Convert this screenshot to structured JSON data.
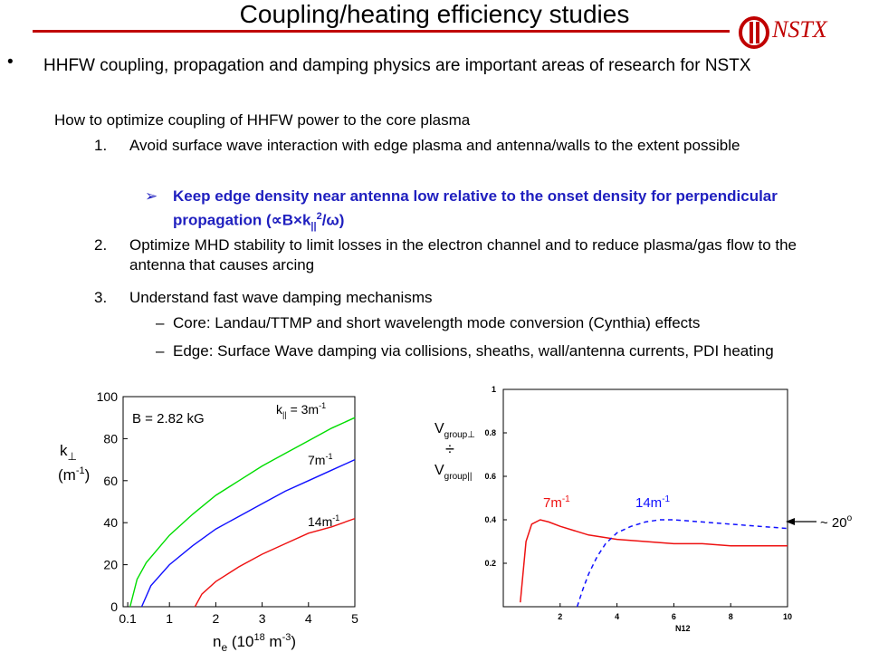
{
  "slide": {
    "title": "Coupling/heating efficiency studies",
    "logo_text": "NSTX",
    "bullet": "HHFW coupling, propagation and damping physics are important areas of research for NSTX",
    "subheading": "How to optimize coupling of HHFW power to the core plasma",
    "items": [
      {
        "num": "1.",
        "text": "Avoid surface wave interaction with edge plasma and antenna/walls to the extent possible"
      },
      {
        "num": "2.",
        "text": "Optimize MHD stability to limit losses in the electron channel and to reduce plasma/gas flow to the antenna that causes arcing"
      },
      {
        "num": "3.",
        "text": "Understand fast wave damping mechanisms"
      }
    ],
    "highlight": "Keep edge density near antenna low relative to the onset density for perpendicular propagation (∝B×k",
    "highlight_sub": "||",
    "highlight_sup": "2",
    "highlight_end": "/ω)",
    "sub_items": [
      "Core: Landau/TTMP and short wavelength mode conversion (Cynthia) effects",
      "Edge: Surface Wave damping via collisions, sheaths, wall/antenna currents, PDI heating"
    ]
  },
  "colors": {
    "accent": "#c00000",
    "blue_text": "#1f1fbf",
    "green": "#00dd00",
    "blue": "#1010ff",
    "red": "#ee1111"
  },
  "chart_data": [
    {
      "type": "line",
      "ylabel_main": "k",
      "ylabel_sub": "⊥",
      "ylabel_unit": "(m",
      "ylabel_unit_sup": "-1",
      "ylabel_unit_end": ")",
      "xlabel_main": "n",
      "xlabel_sub": "e",
      "xlabel_unit": " (10",
      "xlabel_unit_sup1": "18",
      "xlabel_unit_mid": " m",
      "xlabel_unit_sup2": "-3",
      "xlabel_unit_end": ")",
      "annotation": "B = 2.82 kG",
      "xlim": [
        0,
        5
      ],
      "ylim": [
        0,
        100
      ],
      "xticks": [
        "0.1",
        "1",
        "2",
        "3",
        "4",
        "5"
      ],
      "yticks": [
        "0",
        "20",
        "40",
        "60",
        "80",
        "100"
      ],
      "series": [
        {
          "name": "3m-1",
          "label_prefix": "k",
          "label_sub": "||",
          "label_main": " = 3m",
          "label_sup": "-1",
          "color": "green",
          "x": [
            0.15,
            0.3,
            0.5,
            1.0,
            1.5,
            2.0,
            2.5,
            3.0,
            3.5,
            4.0,
            4.5,
            5.0
          ],
          "y": [
            0,
            13,
            21,
            34,
            44,
            53,
            60,
            67,
            73,
            79,
            85,
            90
          ]
        },
        {
          "name": "7m-1",
          "label_prefix": "",
          "label_sub": "",
          "label_main": "7m",
          "label_sup": "-1",
          "color": "blue",
          "x": [
            0.4,
            0.6,
            1.0,
            1.5,
            2.0,
            2.5,
            3.0,
            3.5,
            4.0,
            4.5,
            5.0
          ],
          "y": [
            0,
            10,
            20,
            29,
            37,
            43,
            49,
            55,
            60,
            65,
            70
          ]
        },
        {
          "name": "14m-1",
          "label_prefix": "",
          "label_sub": "",
          "label_main": "14m",
          "label_sup": "-1",
          "color": "red",
          "x": [
            1.55,
            1.7,
            2.0,
            2.5,
            3.0,
            3.5,
            4.0,
            4.5,
            5.0
          ],
          "y": [
            0,
            6,
            12,
            19,
            25,
            30,
            35,
            38,
            42
          ]
        }
      ]
    },
    {
      "type": "line",
      "xlabel": "N12",
      "ylabel_top": "V",
      "ylabel_top_sub": "group⊥",
      "ylabel_div": "÷",
      "ylabel_bot": "V",
      "ylabel_bot_sub": "group||",
      "xlim": [
        0,
        10
      ],
      "ylim": [
        0,
        1.0
      ],
      "xticks": [
        "2",
        "4",
        "6",
        "8",
        "10"
      ],
      "yticks": [
        "0.2",
        "0.4",
        "0.6",
        "0.8",
        "1"
      ],
      "annotation": "~ 20",
      "annotation_sup": "o",
      "series": [
        {
          "name": "7m-1",
          "label_main": "7m",
          "label_sup": "-1",
          "color": "red",
          "dashed": false,
          "x": [
            0.6,
            0.8,
            1.0,
            1.3,
            1.6,
            2.0,
            2.5,
            3.0,
            4.0,
            5.0,
            6.0,
            7.0,
            8.0,
            10.0
          ],
          "y": [
            0.02,
            0.3,
            0.38,
            0.4,
            0.39,
            0.37,
            0.35,
            0.33,
            0.31,
            0.3,
            0.29,
            0.29,
            0.28,
            0.28
          ]
        },
        {
          "name": "14m-1",
          "label_main": "14m",
          "label_sup": "-1",
          "color": "blue",
          "dashed": true,
          "x": [
            2.6,
            2.8,
            3.0,
            3.3,
            3.6,
            4.0,
            4.5,
            5.0,
            5.5,
            6.0,
            7.0,
            8.0,
            9.0,
            10.0
          ],
          "y": [
            0.0,
            0.08,
            0.15,
            0.23,
            0.29,
            0.34,
            0.37,
            0.39,
            0.4,
            0.4,
            0.39,
            0.38,
            0.37,
            0.36
          ]
        }
      ]
    }
  ]
}
